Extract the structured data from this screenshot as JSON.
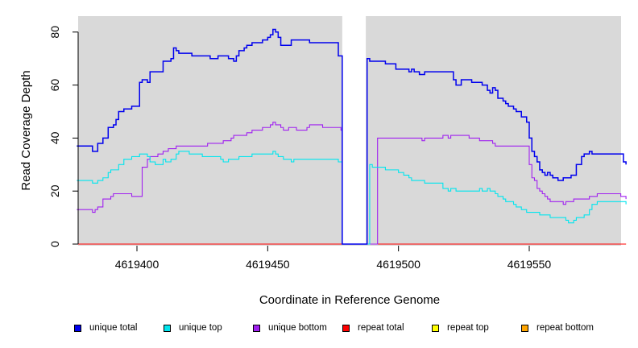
{
  "chart_data": {
    "type": "line",
    "title": "",
    "xlabel": "Coordinate in Reference Genome",
    "ylabel": "Read Coverage Depth",
    "xlim": [
      4619377,
      4619587
    ],
    "ylim": [
      0,
      86
    ],
    "x_ticks": [
      4619400,
      4619450,
      4619500,
      4619550
    ],
    "x_tick_labels": [
      "4619400",
      "4619450",
      "4619500",
      "4619550"
    ],
    "y_ticks": [
      0,
      20,
      40,
      60,
      80
    ],
    "y_tick_labels": [
      "0",
      "20",
      "40",
      "60",
      "80"
    ],
    "gap_region": [
      4619478.5,
      4619487.5
    ],
    "grid": false,
    "legend_position": "bottom",
    "series": [
      {
        "name": "unique total",
        "color": "#0000ee",
        "x": [
          4619377,
          4619381,
          4619382,
          4619383,
          4619385,
          4619386,
          4619387,
          4619389,
          4619391,
          4619392,
          4619393,
          4619395,
          4619397,
          4619398,
          4619401,
          4619402,
          4619404,
          4619405,
          4619407,
          4619408,
          4619410,
          4619411,
          4619413,
          4619414,
          4619415,
          4619416,
          4619418,
          4619419,
          4619421,
          4619425,
          4619426,
          4619428,
          4619431,
          4619435,
          4619437,
          4619438,
          4619439,
          4619440,
          4619441,
          4619442,
          4619444,
          4619446,
          4619448,
          4619450,
          4619451,
          4619452,
          4619453,
          4619454,
          4619455,
          4619457,
          4619459,
          4619465,
          4619466,
          4619472,
          4619477,
          4619478,
          4619478.5,
          4619487.5,
          4619488,
          4619489,
          4619490,
          4619495,
          4619499,
          4619504,
          4619505,
          4619506,
          4619507,
          4619508,
          4619510,
          4619519,
          4619521,
          4619522,
          4619524,
          4619528,
          4619532,
          4619533,
          4619534,
          4619535,
          4619536,
          4619537,
          4619538,
          4619539,
          4619540,
          4619541,
          4619542,
          4619544,
          4619545,
          4619547,
          4619549,
          4619550,
          4619551,
          4619552,
          4619553,
          4619554,
          4619555,
          4619556,
          4619557,
          4619558,
          4619559,
          4619560,
          4619561,
          4619563,
          4619566,
          4619568,
          4619570,
          4619571,
          4619572,
          4619573,
          4619574,
          4619576,
          4619585,
          4619586,
          4619587
        ],
        "values": [
          37,
          37,
          37,
          35,
          38,
          38,
          40,
          44,
          45,
          47,
          50,
          51,
          51,
          52,
          61,
          62,
          61,
          65,
          65,
          65,
          69,
          69,
          70,
          74,
          73,
          72,
          72,
          72,
          71,
          71,
          71,
          70,
          71,
          70,
          69,
          71,
          73,
          73,
          74,
          75,
          76,
          76,
          77,
          78,
          79,
          81,
          80,
          78,
          75,
          75,
          77,
          77,
          76,
          76,
          71,
          71,
          0,
          0,
          70,
          69,
          69,
          68,
          66,
          65,
          66,
          65,
          65,
          64,
          65,
          65,
          62,
          60,
          62,
          61,
          60,
          60,
          58,
          57,
          59,
          58,
          55,
          55,
          54,
          53,
          52,
          51,
          50,
          48,
          46,
          40,
          35,
          33,
          31,
          28,
          27,
          26,
          27,
          26,
          25,
          25,
          24,
          25,
          26,
          30,
          33,
          34,
          34,
          35,
          34,
          34,
          34,
          31,
          30
        ]
      },
      {
        "name": "unique top",
        "color": "#00e5ee",
        "x": [
          4619377,
          4619381,
          4619382,
          4619383,
          4619384,
          4619385,
          4619386,
          4619387,
          4619389,
          4619390,
          4619393,
          4619395,
          4619397,
          4619398,
          4619401,
          4619402,
          4619404,
          4619405,
          4619407,
          4619408,
          4619410,
          4619411,
          4619413,
          4619415,
          4619416,
          4619418,
          4619420,
          4619423,
          4619425,
          4619428,
          4619430,
          4619431,
          4619432,
          4619433,
          4619435,
          4619437,
          4619439,
          4619440,
          4619441,
          4619442,
          4619444,
          4619446,
          4619451,
          4619452,
          4619453,
          4619454,
          4619455,
          4619456,
          4619458,
          4619459,
          4619460,
          4619462,
          4619467,
          4619472,
          4619477,
          4619478,
          4619478.5,
          4619487.5,
          4619489,
          4619490,
          4619495,
          4619500,
          4619502,
          4619504,
          4619505,
          4619506,
          4619507,
          4619508,
          4619510,
          4619515,
          4619517,
          4619519,
          4619520,
          4619522,
          4619528,
          4619529,
          4619531,
          4619532,
          4619533,
          4619534,
          4619535,
          4619536,
          4619537,
          4619538,
          4619539,
          4619540,
          4619541,
          4619542,
          4619544,
          4619545,
          4619547,
          4619549,
          4619550,
          4619552,
          4619554,
          4619555,
          4619557,
          4619558,
          4619560,
          4619562,
          4619564,
          4619565,
          4619567,
          4619568,
          4619570,
          4619571,
          4619573,
          4619574,
          4619576,
          4619585,
          4619587
        ],
        "values": [
          24,
          24,
          24,
          23,
          23,
          24,
          24,
          25,
          27,
          28,
          30,
          32,
          32,
          33,
          34,
          34,
          33,
          31,
          30,
          30,
          32,
          31,
          32,
          34,
          35,
          35,
          34,
          34,
          33,
          33,
          33,
          33,
          32,
          31,
          32,
          32,
          33,
          33,
          33,
          33,
          34,
          34,
          34,
          35,
          34,
          33,
          33,
          32,
          32,
          31,
          32,
          32,
          32,
          32,
          31,
          31,
          0,
          0,
          30,
          29,
          28,
          27,
          26,
          25,
          24,
          24,
          24,
          24,
          23,
          23,
          21,
          20,
          21,
          20,
          20,
          20,
          21,
          20,
          20,
          21,
          20,
          20,
          19,
          18,
          18,
          17,
          16,
          16,
          15,
          14,
          13,
          12,
          12,
          12,
          11,
          11,
          11,
          10,
          10,
          10,
          9,
          8,
          9,
          10,
          10,
          11,
          13,
          15,
          16,
          16,
          15
        ]
      },
      {
        "name": "unique bottom",
        "color": "#a020f0",
        "x": [
          4619377,
          4619381,
          4619383,
          4619384,
          4619385,
          4619387,
          4619390,
          4619391,
          4619392,
          4619398,
          4619402,
          4619404,
          4619405,
          4619407,
          4619408,
          4619409,
          4619410,
          4619411,
          4619412,
          4619413,
          4619414,
          4619415,
          4619425,
          4619426,
          4619427,
          4619428,
          4619433,
          4619434,
          4619435,
          4619436,
          4619437,
          4619438,
          4619442,
          4619444,
          4619446,
          4619448,
          4619450,
          4619451,
          4619452,
          4619453,
          4619455,
          4619456,
          4619458,
          4619461,
          4619465,
          4619466,
          4619470,
          4619471,
          4619477,
          4619478,
          4619478.5,
          4619487.5,
          4619492,
          4619500,
          4619507,
          4619508,
          4619509,
          4619510,
          4619517,
          4619518,
          4619519,
          4619520,
          4619523,
          4619527,
          4619529,
          4619531,
          4619536,
          4619537,
          4619542,
          4619546,
          4619549,
          4619550,
          4619551,
          4619552,
          4619553,
          4619554,
          4619555,
          4619556,
          4619557,
          4619558,
          4619560,
          4619563,
          4619564,
          4619565,
          4619567,
          4619573,
          4619574,
          4619576,
          4619582,
          4619585,
          4619587
        ],
        "values": [
          13,
          13,
          12,
          13,
          14,
          17,
          18,
          19,
          19,
          18,
          29,
          32,
          33,
          33,
          34,
          34,
          35,
          35,
          36,
          36,
          36,
          37,
          37,
          37,
          38,
          38,
          39,
          39,
          39,
          40,
          41,
          41,
          42,
          43,
          43,
          44,
          44,
          45,
          46,
          45,
          44,
          43,
          44,
          43,
          44,
          45,
          45,
          44,
          44,
          43,
          0,
          0,
          40,
          40,
          40,
          40,
          39,
          40,
          41,
          41,
          40,
          41,
          41,
          40,
          40,
          39,
          38,
          37,
          37,
          37,
          37,
          30,
          25,
          24,
          21,
          20,
          19,
          18,
          17,
          16,
          16,
          15,
          16,
          16,
          17,
          18,
          18,
          19,
          19,
          18,
          17
        ]
      },
      {
        "name": "repeat total",
        "color": "#ff0000",
        "x": [
          4619377,
          4619587
        ],
        "values": [
          0,
          0
        ]
      },
      {
        "name": "repeat top",
        "color": "#ffff00",
        "x": [
          4619377,
          4619587
        ],
        "values": [
          0,
          0
        ]
      },
      {
        "name": "repeat bottom",
        "color": "#ffa500",
        "x": [
          4619377,
          4619587
        ],
        "values": [
          0,
          0
        ]
      }
    ]
  },
  "legend": [
    {
      "label": "unique total",
      "color": "#0000ee"
    },
    {
      "label": "unique top",
      "color": "#00e5ee"
    },
    {
      "label": "unique bottom",
      "color": "#a020f0"
    },
    {
      "label": "repeat total",
      "color": "#ff0000"
    },
    {
      "label": "repeat top",
      "color": "#ffff00"
    },
    {
      "label": "repeat bottom",
      "color": "#ffa500"
    }
  ],
  "colors": {
    "panel_background": "#d9d9d9",
    "gap_fill": "#ffffff",
    "gap_border": "#0000ee"
  }
}
